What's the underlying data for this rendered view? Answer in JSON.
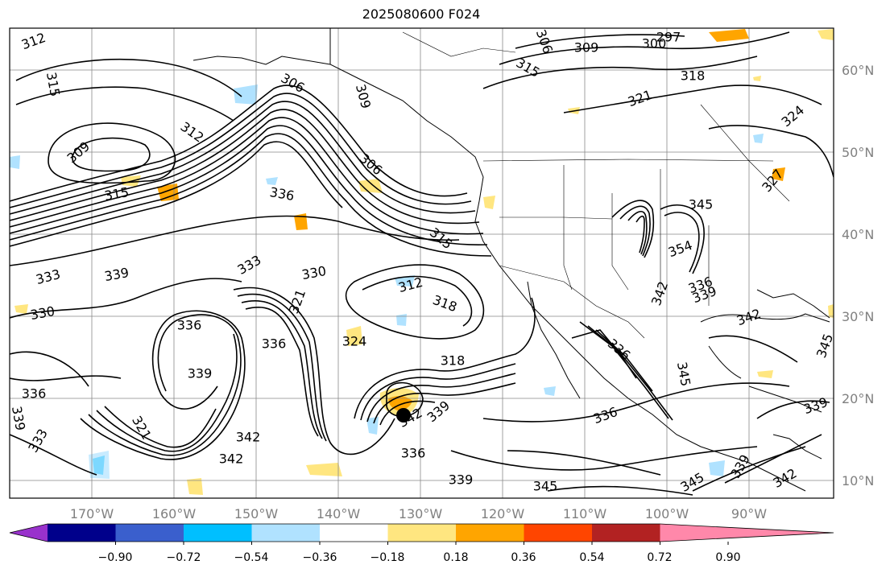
{
  "title": "2025080600 F024",
  "lon_labels": [
    "170°W",
    "160°W",
    "150°W",
    "140°W",
    "130°W",
    "120°W",
    "110°W",
    "100°W",
    "90°W"
  ],
  "lat_labels": [
    "60°N",
    "50°N",
    "40°N",
    "30°N",
    "20°N",
    "10°N"
  ],
  "colorbar": {
    "colors": [
      "#9932cc",
      "#00008b",
      "#3a5fcd",
      "#00bfff",
      "#b0e2ff",
      "#ffffff",
      "#ffe680",
      "#ffa500",
      "#ff4500",
      "#b22222",
      "#ff88aa"
    ],
    "tick_labels": [
      "−0.90",
      "−0.72",
      "−0.54",
      "−0.36",
      "−0.18",
      "0.18",
      "0.36",
      "0.54",
      "0.72",
      "0.90"
    ]
  },
  "contour_labels": [
    "312",
    "315",
    "306",
    "309",
    "312",
    "309",
    "306",
    "315",
    "336",
    "333",
    "339",
    "330",
    "333",
    "330",
    "321",
    "315",
    "312",
    "318",
    "324",
    "336",
    "336",
    "339",
    "336",
    "333",
    "321",
    "342",
    "342",
    "339",
    "336",
    "342",
    "339",
    "318",
    "306",
    "300",
    "297",
    "315",
    "309",
    "318",
    "321",
    "324",
    "327",
    "345",
    "354",
    "342",
    "336",
    "339",
    "342",
    "345",
    "336",
    "336",
    "339",
    "345",
    "339",
    "342",
    "345",
    "339",
    "345"
  ],
  "marker": "tropical-cyclone-center"
}
